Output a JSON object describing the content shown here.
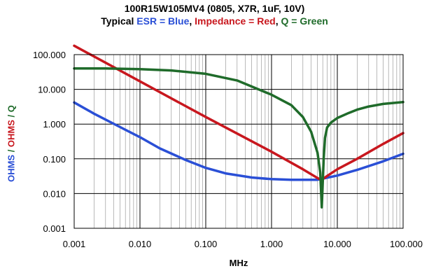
{
  "chart_data": {
    "type": "line",
    "title": "100R15W105MV4 (0805, X7R, 1uF, 10V)",
    "subtitle": {
      "prefix": "Typical ",
      "esr": "ESR = Blue",
      "sep1": ", ",
      "impedance": "Impedance = Red",
      "sep2": ", ",
      "q": "Q = Green"
    },
    "xlabel": "MHz",
    "ylabel": {
      "part1": "OHMS",
      "sep1": " / ",
      "part2": "OHMS",
      "sep2": " / ",
      "part3": "Q"
    },
    "x_scale": "log",
    "y_scale": "log",
    "xlim": [
      0.001,
      100
    ],
    "ylim": [
      0.001,
      100
    ],
    "grid": true,
    "x_ticks": [
      "0.001",
      "0.010",
      "0.100",
      "1.000",
      "10.000",
      "100.000"
    ],
    "y_ticks": [
      "100.000",
      "10.000",
      "1.000",
      "0.100",
      "0.010",
      "0.001"
    ],
    "colors": {
      "esr": "#2a4fd6",
      "impedance": "#c8171e",
      "q": "#1f6b2a",
      "grid": "#000000"
    },
    "series": [
      {
        "key": "esr",
        "x": [
          0.001,
          0.002,
          0.005,
          0.01,
          0.02,
          0.05,
          0.1,
          0.2,
          0.5,
          1,
          2,
          5,
          10,
          20,
          50,
          100
        ],
        "y": [
          4.2,
          2.0,
          0.82,
          0.42,
          0.2,
          0.092,
          0.055,
          0.038,
          0.029,
          0.026,
          0.025,
          0.025,
          0.033,
          0.048,
          0.085,
          0.14
        ]
      },
      {
        "key": "impedance",
        "x": [
          0.001,
          0.01,
          0.1,
          1,
          3,
          5,
          5.6,
          6,
          7,
          10,
          20,
          50,
          100
        ],
        "y": [
          180,
          17,
          1.6,
          0.16,
          0.05,
          0.028,
          0.025,
          0.026,
          0.032,
          0.05,
          0.1,
          0.27,
          0.55
        ]
      },
      {
        "key": "q",
        "x": [
          0.001,
          0.003,
          0.01,
          0.03,
          0.1,
          0.3,
          1,
          2,
          3,
          4,
          5,
          5.5,
          5.8,
          6.2,
          6.5,
          7,
          8,
          10,
          15,
          20,
          30,
          50,
          100
        ],
        "y": [
          40,
          40,
          38,
          35,
          28,
          18,
          7,
          3.5,
          1.6,
          0.6,
          0.15,
          0.04,
          0.004,
          0.1,
          0.4,
          0.8,
          1.1,
          1.5,
          2.1,
          2.6,
          3.2,
          3.8,
          4.3
        ]
      }
    ]
  }
}
